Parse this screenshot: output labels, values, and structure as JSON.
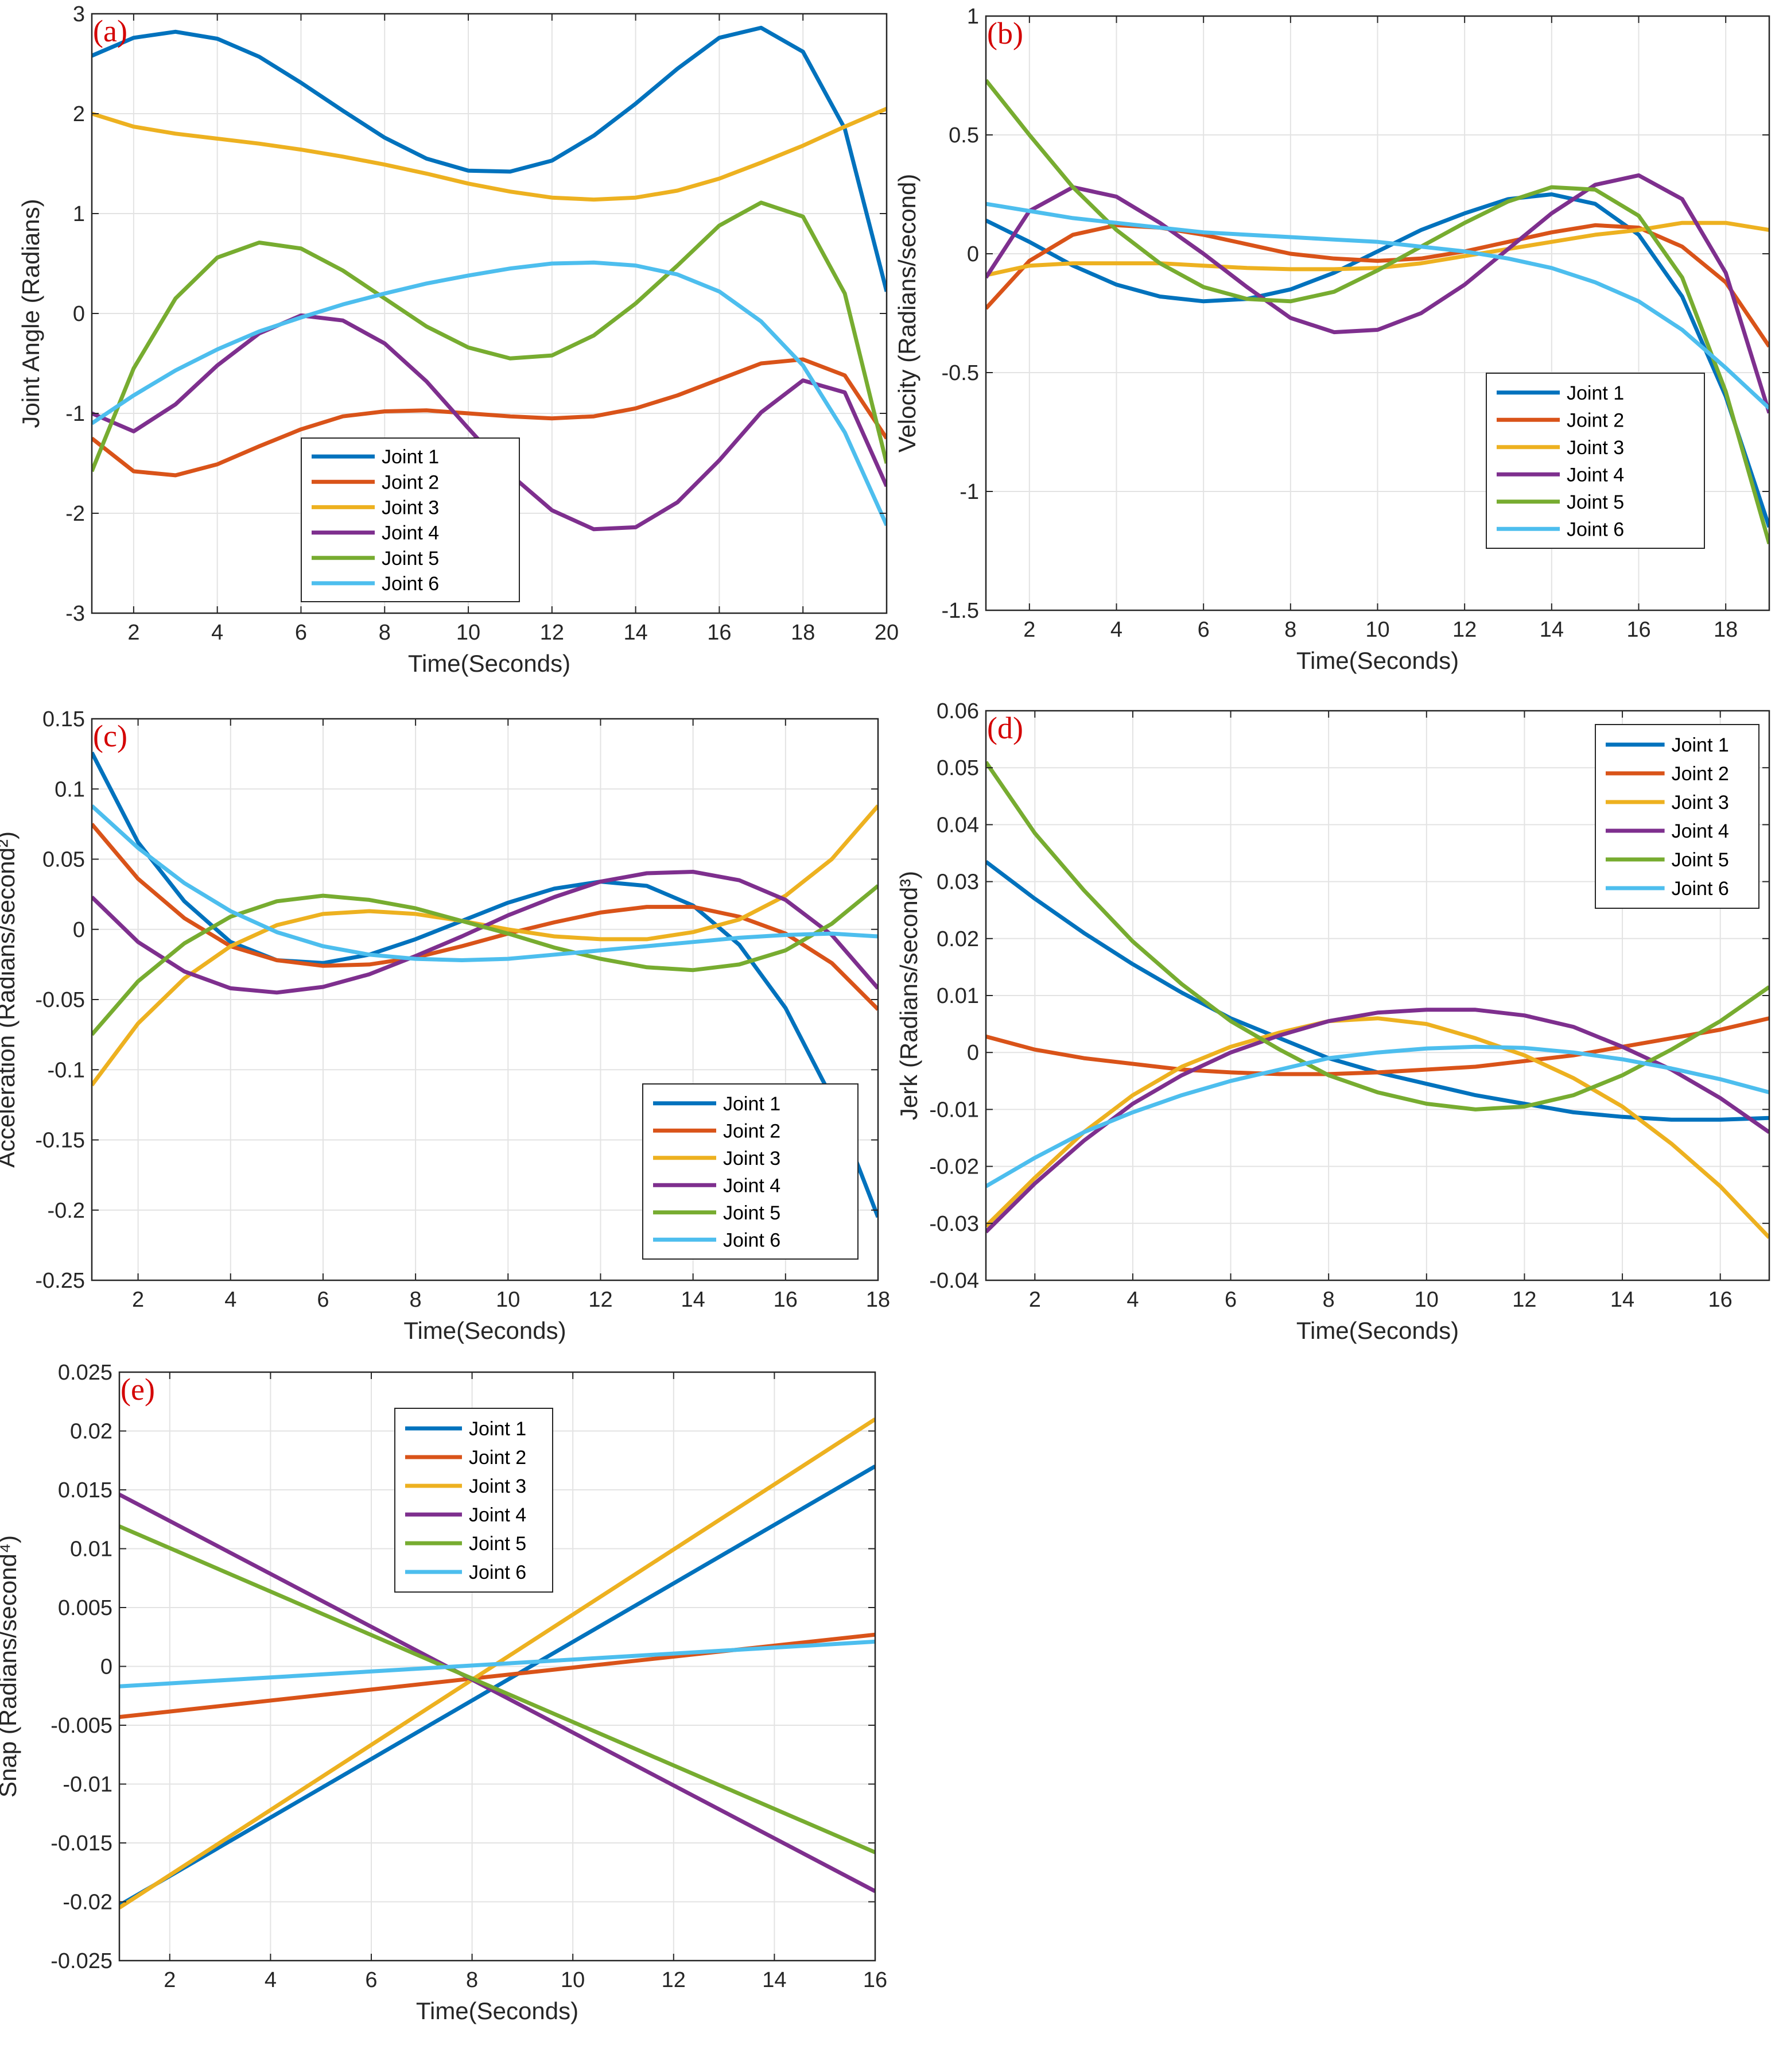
{
  "chart_data": [
    {
      "type": "line",
      "panel": "(a)",
      "xlabel": "Time(Seconds)",
      "ylabel": "Joint Angle (Radians)",
      "xlim": [
        1,
        20
      ],
      "ylim": [
        -3,
        3
      ],
      "xticks": [
        2,
        4,
        6,
        8,
        10,
        12,
        14,
        16,
        18,
        20
      ],
      "yticks": [
        -3,
        -2,
        -1,
        0,
        1,
        2,
        3
      ],
      "grid": true,
      "legend_position": "bottom-center",
      "x": [
        1,
        2,
        3,
        4,
        5,
        6,
        7,
        8,
        9,
        10,
        11,
        12,
        13,
        14,
        15,
        16,
        17,
        18,
        19,
        20
      ],
      "series": [
        {
          "name": "Joint 1",
          "values": [
            2.58,
            2.76,
            2.82,
            2.75,
            2.57,
            2.31,
            2.03,
            1.76,
            1.55,
            1.43,
            1.42,
            1.53,
            1.78,
            2.1,
            2.45,
            2.76,
            2.86,
            2.62,
            1.85,
            0.22
          ]
        },
        {
          "name": "Joint 2",
          "values": [
            -1.25,
            -1.58,
            -1.62,
            -1.51,
            -1.33,
            -1.16,
            -1.03,
            -0.98,
            -0.97,
            -1.0,
            -1.03,
            -1.05,
            -1.03,
            -0.95,
            -0.82,
            -0.66,
            -0.5,
            -0.46,
            -0.62,
            -1.25
          ]
        },
        {
          "name": "Joint 3",
          "values": [
            2.0,
            1.87,
            1.8,
            1.75,
            1.7,
            1.64,
            1.57,
            1.49,
            1.4,
            1.3,
            1.22,
            1.16,
            1.14,
            1.16,
            1.23,
            1.35,
            1.51,
            1.68,
            1.87,
            2.05
          ]
        },
        {
          "name": "Joint 4",
          "values": [
            -1.0,
            -1.18,
            -0.91,
            -0.52,
            -0.2,
            -0.02,
            -0.07,
            -0.3,
            -0.68,
            -1.15,
            -1.61,
            -1.97,
            -2.16,
            -2.14,
            -1.89,
            -1.47,
            -0.99,
            -0.67,
            -0.79,
            -1.73
          ]
        },
        {
          "name": "Joint 5",
          "values": [
            -1.58,
            -0.55,
            0.15,
            0.56,
            0.71,
            0.65,
            0.43,
            0.15,
            -0.13,
            -0.34,
            -0.45,
            -0.42,
            -0.22,
            0.1,
            0.48,
            0.88,
            1.11,
            0.97,
            0.2,
            -1.5
          ]
        },
        {
          "name": "Joint 6",
          "values": [
            -1.1,
            -0.82,
            -0.57,
            -0.36,
            -0.18,
            -0.04,
            0.09,
            0.2,
            0.3,
            0.38,
            0.45,
            0.5,
            0.51,
            0.48,
            0.39,
            0.22,
            -0.08,
            -0.52,
            -1.19,
            -2.12
          ]
        }
      ]
    },
    {
      "type": "line",
      "panel": "(b)",
      "xlabel": "Time(Seconds)",
      "ylabel": "Velocity (Radians/second)",
      "xlim": [
        1,
        19
      ],
      "ylim": [
        -1.5,
        1
      ],
      "xticks": [
        2,
        4,
        6,
        8,
        10,
        12,
        14,
        16,
        18
      ],
      "yticks": [
        -1.5,
        -1,
        -0.5,
        0,
        0.5,
        1
      ],
      "grid": true,
      "legend_position": "lower-right",
      "x": [
        1,
        2,
        3,
        4,
        5,
        6,
        7,
        8,
        9,
        10,
        11,
        12,
        13,
        14,
        15,
        16,
        17,
        18,
        19
      ],
      "series": [
        {
          "name": "Joint 1",
          "values": [
            0.14,
            0.05,
            -0.05,
            -0.13,
            -0.18,
            -0.2,
            -0.19,
            -0.15,
            -0.08,
            0.01,
            0.1,
            0.17,
            0.23,
            0.25,
            0.21,
            0.08,
            -0.18,
            -0.6,
            -1.15
          ]
        },
        {
          "name": "Joint 2",
          "values": [
            -0.23,
            -0.03,
            0.08,
            0.12,
            0.11,
            0.08,
            0.04,
            0.0,
            -0.02,
            -0.03,
            -0.02,
            0.01,
            0.05,
            0.09,
            0.12,
            0.11,
            0.03,
            -0.12,
            -0.39
          ]
        },
        {
          "name": "Joint 3",
          "values": [
            -0.09,
            -0.05,
            -0.04,
            -0.04,
            -0.04,
            -0.05,
            -0.06,
            -0.065,
            -0.065,
            -0.06,
            -0.04,
            -0.01,
            0.02,
            0.05,
            0.08,
            0.1,
            0.13,
            0.13,
            0.1
          ]
        },
        {
          "name": "Joint 4",
          "values": [
            -0.1,
            0.18,
            0.28,
            0.24,
            0.13,
            0.0,
            -0.14,
            -0.27,
            -0.33,
            -0.32,
            -0.25,
            -0.13,
            0.02,
            0.17,
            0.29,
            0.33,
            0.23,
            -0.08,
            -0.67
          ]
        },
        {
          "name": "Joint 5",
          "values": [
            0.73,
            0.5,
            0.28,
            0.1,
            -0.04,
            -0.14,
            -0.19,
            -0.2,
            -0.16,
            -0.07,
            0.03,
            0.13,
            0.22,
            0.28,
            0.27,
            0.16,
            -0.1,
            -0.58,
            -1.22
          ]
        },
        {
          "name": "Joint 6",
          "values": [
            0.21,
            0.18,
            0.15,
            0.13,
            0.11,
            0.09,
            0.08,
            0.07,
            0.06,
            0.05,
            0.03,
            0.01,
            -0.02,
            -0.06,
            -0.12,
            -0.2,
            -0.32,
            -0.48,
            -0.65
          ]
        }
      ]
    },
    {
      "type": "line",
      "panel": "(c)",
      "xlabel": "Time(Seconds)",
      "ylabel": "Acceleration (Radians/second²)",
      "xlim": [
        1,
        18
      ],
      "ylim": [
        -0.25,
        0.15
      ],
      "xticks": [
        2,
        4,
        6,
        8,
        10,
        12,
        14,
        16,
        18
      ],
      "yticks": [
        -0.25,
        -0.2,
        -0.15,
        -0.1,
        -0.05,
        0,
        0.05,
        0.1,
        0.15
      ],
      "grid": true,
      "legend_position": "lower-right",
      "x": [
        1,
        2,
        3,
        4,
        5,
        6,
        7,
        8,
        9,
        10,
        11,
        12,
        13,
        14,
        15,
        16,
        17,
        18
      ],
      "series": [
        {
          "name": "Joint 1",
          "values": [
            0.126,
            0.062,
            0.02,
            -0.009,
            -0.022,
            -0.024,
            -0.018,
            -0.007,
            0.006,
            0.019,
            0.029,
            0.034,
            0.031,
            0.017,
            -0.011,
            -0.056,
            -0.12,
            -0.205
          ]
        },
        {
          "name": "Joint 2",
          "values": [
            0.075,
            0.036,
            0.008,
            -0.012,
            -0.022,
            -0.026,
            -0.025,
            -0.02,
            -0.012,
            -0.003,
            0.005,
            0.012,
            0.016,
            0.016,
            0.009,
            -0.003,
            -0.024,
            -0.057
          ]
        },
        {
          "name": "Joint 3",
          "values": [
            -0.111,
            -0.067,
            -0.035,
            -0.012,
            0.003,
            0.011,
            0.013,
            0.011,
            0.006,
            0.0,
            -0.005,
            -0.007,
            -0.007,
            -0.002,
            0.007,
            0.024,
            0.05,
            0.088
          ]
        },
        {
          "name": "Joint 4",
          "values": [
            0.023,
            -0.009,
            -0.03,
            -0.042,
            -0.045,
            -0.041,
            -0.032,
            -0.019,
            -0.005,
            0.01,
            0.023,
            0.034,
            0.04,
            0.041,
            0.035,
            0.021,
            -0.004,
            -0.042
          ]
        },
        {
          "name": "Joint 5",
          "values": [
            -0.075,
            -0.037,
            -0.01,
            0.009,
            0.02,
            0.024,
            0.021,
            0.015,
            0.006,
            -0.003,
            -0.013,
            -0.021,
            -0.027,
            -0.029,
            -0.025,
            -0.015,
            0.004,
            0.031
          ]
        },
        {
          "name": "Joint 6",
          "values": [
            0.088,
            0.058,
            0.033,
            0.013,
            -0.002,
            -0.012,
            -0.018,
            -0.021,
            -0.022,
            -0.021,
            -0.018,
            -0.015,
            -0.012,
            -0.009,
            -0.006,
            -0.004,
            -0.003,
            -0.005
          ]
        }
      ]
    },
    {
      "type": "line",
      "panel": "(d)",
      "xlabel": "Time(Seconds)",
      "ylabel": "Jerk (Radians/second³)",
      "xlim": [
        1,
        17
      ],
      "ylim": [
        -0.04,
        0.06
      ],
      "xticks": [
        2,
        4,
        6,
        8,
        10,
        12,
        14,
        16
      ],
      "yticks": [
        -0.04,
        -0.03,
        -0.02,
        -0.01,
        0,
        0.01,
        0.02,
        0.03,
        0.04,
        0.05,
        0.06
      ],
      "grid": true,
      "legend_position": "top-right",
      "x": [
        1,
        2,
        3,
        4,
        5,
        6,
        7,
        8,
        9,
        10,
        11,
        12,
        13,
        14,
        15,
        16,
        17
      ],
      "series": [
        {
          "name": "Joint 1",
          "values": [
            0.0335,
            0.027,
            0.021,
            0.0155,
            0.0105,
            0.006,
            0.0025,
            -0.001,
            -0.0035,
            -0.0055,
            -0.0075,
            -0.009,
            -0.0105,
            -0.0113,
            -0.0118,
            -0.0118,
            -0.0115
          ]
        },
        {
          "name": "Joint 2",
          "values": [
            0.0028,
            0.0005,
            -0.001,
            -0.002,
            -0.003,
            -0.0035,
            -0.0038,
            -0.0038,
            -0.0035,
            -0.003,
            -0.0025,
            -0.0015,
            -0.0005,
            0.001,
            0.0025,
            0.004,
            0.006
          ]
        },
        {
          "name": "Joint 3",
          "values": [
            -0.0305,
            -0.022,
            -0.014,
            -0.0075,
            -0.0025,
            0.001,
            0.0035,
            0.0055,
            0.006,
            0.005,
            0.0025,
            -0.0005,
            -0.0045,
            -0.0095,
            -0.016,
            -0.0235,
            -0.0325
          ]
        },
        {
          "name": "Joint 4",
          "values": [
            -0.0315,
            -0.023,
            -0.0155,
            -0.009,
            -0.004,
            0.0,
            0.003,
            0.0055,
            0.007,
            0.0075,
            0.0075,
            0.0065,
            0.0045,
            0.001,
            -0.003,
            -0.008,
            -0.014
          ]
        },
        {
          "name": "Joint 5",
          "values": [
            0.051,
            0.0385,
            0.0285,
            0.0195,
            0.012,
            0.0055,
            0.0005,
            -0.004,
            -0.007,
            -0.009,
            -0.01,
            -0.0095,
            -0.0075,
            -0.004,
            0.0005,
            0.0055,
            0.0115
          ]
        },
        {
          "name": "Joint 6",
          "values": [
            -0.0235,
            -0.0185,
            -0.014,
            -0.0105,
            -0.0075,
            -0.005,
            -0.003,
            -0.001,
            0.0,
            0.0007,
            0.001,
            0.0008,
            0.0,
            -0.0012,
            -0.0028,
            -0.0047,
            -0.007
          ]
        }
      ]
    },
    {
      "type": "line",
      "panel": "(e)",
      "xlabel": "Time(Seconds)",
      "ylabel": "Snap (Radians/second⁴)",
      "xlim": [
        1,
        16
      ],
      "ylim": [
        -0.025,
        0.025
      ],
      "xticks": [
        2,
        4,
        6,
        8,
        10,
        12,
        14,
        16
      ],
      "yticks": [
        -0.025,
        -0.02,
        -0.015,
        -0.01,
        -0.005,
        0,
        0.005,
        0.01,
        0.015,
        0.02,
        0.025
      ],
      "grid": true,
      "legend_position": "top-center",
      "x": [
        1,
        16
      ],
      "series": [
        {
          "name": "Joint 1",
          "values": [
            -0.0203,
            0.017
          ]
        },
        {
          "name": "Joint 2",
          "values": [
            -0.0043,
            0.0027
          ]
        },
        {
          "name": "Joint 3",
          "values": [
            -0.0205,
            0.021
          ]
        },
        {
          "name": "Joint 4",
          "values": [
            0.0146,
            -0.0191
          ]
        },
        {
          "name": "Joint 5",
          "values": [
            0.0119,
            -0.0158
          ]
        },
        {
          "name": "Joint 6",
          "values": [
            -0.0017,
            0.0021
          ]
        }
      ]
    }
  ],
  "colors": {
    "Joint 1": "#0072BD",
    "Joint 2": "#D95319",
    "Joint 3": "#EDB120",
    "Joint 4": "#7E2F8E",
    "Joint 5": "#77AC30",
    "Joint 6": "#4DBEEE",
    "grid": "#e3e3e3",
    "axis": "#262626",
    "panel_tag": "#d40000"
  }
}
